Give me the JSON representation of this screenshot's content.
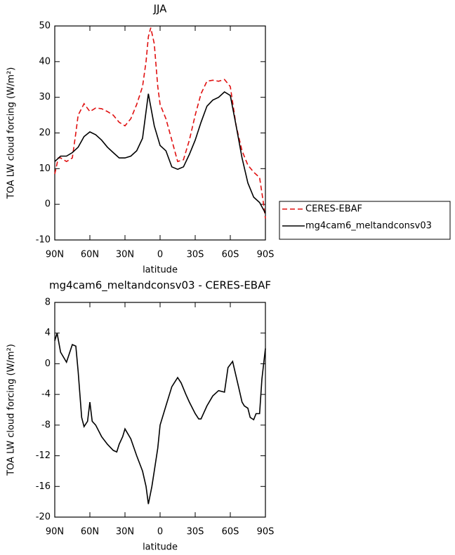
{
  "chart_data": [
    {
      "type": "line",
      "title": "JJA",
      "xlabel": "latitude",
      "ylabel": "TOA LW cloud forcing (W/m²)",
      "xlim": [
        90,
        -90
      ],
      "xticks": [
        {
          "value": 90,
          "label": "90N"
        },
        {
          "value": 60,
          "label": "60N"
        },
        {
          "value": 30,
          "label": "30N"
        },
        0,
        {
          "value": -30,
          "label": "30S"
        },
        {
          "value": -60,
          "label": "60S"
        },
        {
          "value": -90,
          "label": "90S"
        }
      ],
      "ylim": [
        -10,
        50
      ],
      "yticks": [
        -10,
        0,
        10,
        20,
        30,
        40,
        50
      ],
      "legend": "right",
      "series": [
        {
          "name": "CERES-EBAF",
          "color": "#e01010",
          "style": "dashed",
          "x": [
            90,
            87,
            85,
            80,
            75,
            72,
            70,
            65,
            60,
            55,
            50,
            45,
            40,
            35,
            30,
            25,
            20,
            15,
            12,
            10,
            8,
            5,
            2,
            0,
            -5,
            -10,
            -15,
            -20,
            -25,
            -30,
            -35,
            -40,
            -45,
            -50,
            -55,
            -60,
            -65,
            -70,
            -75,
            -80,
            -85,
            -88,
            -90
          ],
          "values": [
            8.5,
            13,
            13,
            12,
            13,
            20,
            25,
            28.2,
            26,
            27,
            26.8,
            26,
            25,
            23,
            22,
            24,
            28,
            33,
            40,
            47,
            49.5,
            45,
            33,
            28,
            24,
            18,
            12,
            12.5,
            18,
            25,
            31,
            34.5,
            34.8,
            34.5,
            35,
            33,
            22,
            15,
            11,
            9,
            7.5,
            1,
            -4
          ]
        },
        {
          "name": "mg4cam6_meltandconsv03",
          "color": "#000000",
          "style": "solid",
          "x": [
            90,
            85,
            80,
            75,
            70,
            65,
            60,
            55,
            50,
            45,
            40,
            35,
            30,
            25,
            20,
            15,
            10,
            5,
            0,
            -5,
            -10,
            -15,
            -20,
            -25,
            -30,
            -35,
            -40,
            -45,
            -50,
            -55,
            -60,
            -65,
            -70,
            -75,
            -80,
            -85,
            -90
          ],
          "values": [
            12,
            13.5,
            13.5,
            14.5,
            16,
            19,
            20.3,
            19.5,
            18,
            16,
            14.5,
            13,
            13,
            13.5,
            15,
            18.5,
            31,
            22,
            16.5,
            15,
            10.5,
            9.8,
            10.5,
            14,
            18,
            23,
            27.5,
            29.2,
            30,
            31.5,
            30.5,
            22,
            13,
            6,
            2,
            0.5,
            -2.5
          ]
        }
      ]
    },
    {
      "type": "line",
      "title": "mg4cam6_meltandconsv03 - CERES-EBAF",
      "xlabel": "latitude",
      "ylabel": "TOA LW cloud forcing (W/m²)",
      "xlim": [
        90,
        -90
      ],
      "xticks": [
        {
          "value": 90,
          "label": "90N"
        },
        {
          "value": 60,
          "label": "60N"
        },
        {
          "value": 30,
          "label": "30N"
        },
        0,
        {
          "value": -30,
          "label": "30S"
        },
        {
          "value": -60,
          "label": "60S"
        },
        {
          "value": -90,
          "label": "90S"
        }
      ],
      "ylim": [
        -20,
        8
      ],
      "yticks": [
        -20,
        -16,
        -12,
        -8,
        -4,
        0,
        4,
        8
      ],
      "series": [
        {
          "color": "#000000",
          "style": "solid",
          "x": [
            90,
            88,
            85,
            80,
            75,
            72,
            70,
            67,
            65,
            62,
            60,
            58,
            55,
            50,
            45,
            40,
            37,
            35,
            32,
            30,
            25,
            20,
            15,
            12,
            10,
            7,
            5,
            2,
            0,
            -5,
            -10,
            -15,
            -18,
            -22,
            -25,
            -30,
            -33,
            -35,
            -40,
            -45,
            -50,
            -55,
            -58,
            -62,
            -67,
            -70,
            -72,
            -75,
            -77,
            -80,
            -82,
            -85,
            -87,
            -90
          ],
          "values": [
            3,
            4,
            1.5,
            0.2,
            2.5,
            2.3,
            -1,
            -7,
            -8.2,
            -7.5,
            -5,
            -7.5,
            -8,
            -9.5,
            -10.5,
            -11.3,
            -11.5,
            -10.5,
            -9.5,
            -8.5,
            -9.8,
            -12,
            -14,
            -16,
            -18.3,
            -16,
            -14,
            -11,
            -8,
            -5.5,
            -3,
            -1.8,
            -2.5,
            -4,
            -5,
            -6.5,
            -7.2,
            -7.2,
            -5.5,
            -4.2,
            -3.5,
            -3.7,
            -0.5,
            0.3,
            -3,
            -5,
            -5.5,
            -5.8,
            -7,
            -7.3,
            -6.5,
            -6.5,
            -2,
            2
          ]
        }
      ]
    }
  ]
}
